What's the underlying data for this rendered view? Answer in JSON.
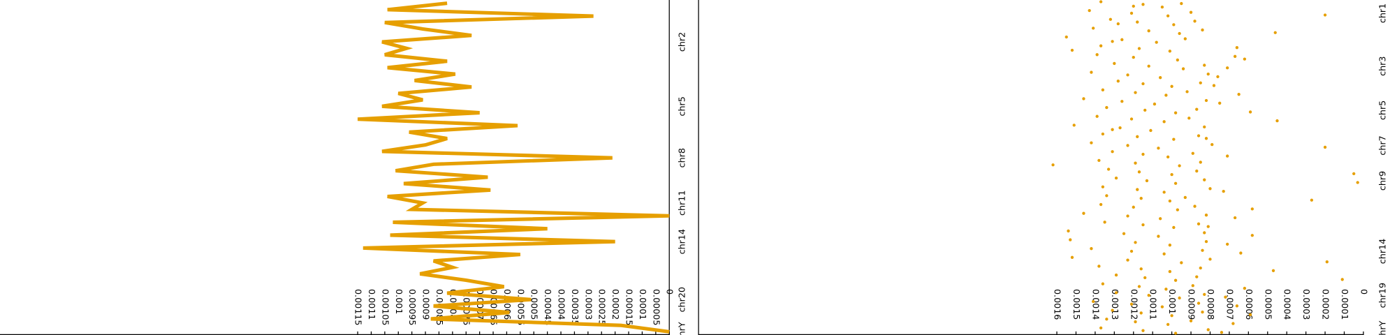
{
  "chart_data": [
    {
      "type": "line",
      "color": "#e69f00",
      "xlim": [
        0.00247,
        0
      ],
      "xticks": [
        0.00115,
        0.0011,
        0.00105,
        0.001,
        0.00095,
        0.0009,
        0.00085,
        0.0008,
        0.00075,
        0.0007,
        0.00065,
        0.0006,
        0.00055,
        0.0005,
        0.00045,
        0.0004,
        0.00035,
        0.0003,
        0.00025,
        0.0002,
        0.00015,
        0.0001,
        5e-05,
        0
      ],
      "categories": [
        null,
        null,
        null,
        null,
        null,
        null,
        "chr2",
        null,
        null,
        null,
        null,
        null,
        null,
        null,
        null,
        null,
        "chr5",
        null,
        null,
        null,
        null,
        null,
        null,
        null,
        "chr8",
        null,
        null,
        null,
        null,
        null,
        null,
        "chr11",
        null,
        null,
        null,
        null,
        null,
        "chr14",
        null,
        null,
        null,
        null,
        null,
        null,
        null,
        null,
        "chr20",
        null,
        null,
        null,
        null,
        "chrY"
      ],
      "values": [
        0.00082,
        0.00104,
        0.00028,
        0.00105,
        0.00091,
        0.00073,
        0.00106,
        0.00097,
        0.00105,
        0.00082,
        0.00104,
        0.00079,
        0.00094,
        0.00073,
        0.001,
        0.00091,
        0.00106,
        0.0007,
        0.00115,
        0.00056,
        0.00096,
        0.00082,
        0.0009,
        0.00106,
        0.00021,
        0.00087,
        0.00101,
        0.00067,
        0.00098,
        0.00066,
        0.00104,
        0.00091,
        0.00095,
        0,
        0.00102,
        0.00045,
        0.00103,
        0.0002,
        0.00113,
        0.00055,
        0.00087,
        0.0008,
        0.00092,
        0.00075,
        0.00061,
        0.00082,
        0.00051,
        0.00087,
        0.00059,
        0.00088,
        0.00018,
        0
      ]
    },
    {
      "type": "scatter",
      "color": "#e69f00",
      "xlim": [
        0.00347,
        0
      ],
      "xticks": [
        0.0016,
        0.0015,
        0.0014,
        0.0013,
        0.0012,
        0.0011,
        0.001,
        0.0009,
        0.0008,
        0.0007,
        0.0006,
        0.0005,
        0.0004,
        0.0003,
        0.0002,
        0.0001,
        0
      ],
      "categories": [
        null,
        "chr1",
        null,
        null,
        null,
        null,
        null,
        "chr3",
        null,
        null,
        null,
        null,
        "chr5",
        null,
        null,
        null,
        "chr7",
        null,
        null,
        null,
        "chr9",
        null,
        null,
        null,
        null,
        null,
        null,
        null,
        "chr14",
        null,
        null,
        null,
        null,
        "chr19",
        null,
        null,
        null,
        "chrY"
      ],
      "values": [
        [
          0.00137,
          0.00115,
          0.00105,
          0.00095,
          0.0012
        ],
        [
          0.00143,
          0.00121,
          0.00102,
          0.0009,
          0.0002
        ],
        [
          0.00132,
          0.00118,
          0.00099,
          0.00088,
          0.00128
        ],
        [
          0.00141,
          0.00112,
          0.00096,
          0.00084,
          0.00046
        ],
        [
          0.00155,
          0.00126,
          0.00108,
          0.00093,
          0.00131
        ],
        [
          0.00137,
          0.00117,
          0.00101,
          0.00066,
          0.00152
        ],
        [
          0.00139,
          0.0012,
          0.00097,
          0.00067,
          0.00062
        ],
        [
          0.0013,
          0.00112,
          0.00094,
          0.00083,
          0.00071
        ],
        [
          0.00142,
          0.00123,
          0.00106,
          0.00081,
          0.00076
        ],
        [
          0.00128,
          0.00115,
          0.001,
          0.00085,
          0.00078
        ],
        [
          0.00136,
          0.00119,
          0.00103,
          0.00092,
          0.00065
        ],
        [
          0.00146,
          0.00126,
          0.00109,
          0.00082,
          0.00075
        ],
        [
          0.00134,
          0.00114,
          0.00098,
          0.00087,
          0.00059
        ],
        [
          0.00139,
          0.00121,
          0.00104,
          0.00091,
          0.00045
        ],
        [
          0.00151,
          0.00127,
          0.00111,
          0.00083,
          0.00131
        ],
        [
          0.00136,
          0.00118,
          0.00099,
          0.00086,
          0.00082
        ],
        [
          0.00142,
          0.00123,
          0.00107,
          0.00079,
          0.0002
        ],
        [
          0.00131,
          0.00115,
          0.00102,
          0.00089,
          0.00071
        ],
        [
          0.00138,
          0.00119,
          0.00096,
          0.00085,
          0.00162
        ],
        [
          0.00133,
          0.00117,
          0.001,
          0.00087,
          5e-05
        ],
        [
          0.00129,
          0.00113,
          0.00098,
          0.00083,
          3e-05
        ],
        [
          0.00136,
          0.00118,
          0.00104,
          0.0008,
          0.00073
        ],
        [
          0.00134,
          0.00116,
          0.00101,
          0.00093,
          0.00027
        ],
        [
          0.00137,
          0.0012,
          0.00097,
          0.00088,
          0.00058
        ],
        [
          0.00146,
          0.00123,
          0.00106,
          0.00082,
          0.00067
        ],
        [
          0.00135,
          0.00115,
          0.00099,
          0.00086,
          0.00081
        ],
        [
          0.00154,
          0.00125,
          0.00107,
          0.00083,
          0.00058
        ],
        [
          0.00153,
          0.00119,
          0.00101,
          0.00082,
          0.00071
        ],
        [
          0.00142,
          0.00121,
          0.00104,
          0.00084,
          0.00064
        ],
        [
          0.00152,
          0.00123,
          0.00095,
          0.0008,
          0.00019
        ],
        [
          0.00138,
          0.00116,
          0.00101,
          0.00085,
          0.00047
        ],
        [
          0.00129,
          0.00114,
          0.00098,
          0.00087,
          0.00011
        ],
        [
          0.00136,
          0.00117,
          0.00103,
          0.00089,
          0.00062
        ],
        [
          0.00129,
          0.00112,
          0.00096,
          0.00083,
          0.00072
        ],
        [
          0.00141,
          0.00121,
          0.00105,
          0.00086,
          0.00066
        ],
        [
          0.00131,
          0.00116,
          0.001,
          0.00084,
          0.00059
        ],
        [
          0.00134,
          0.00119,
          0.00102,
          0.0009,
          0.00068
        ],
        [
          0.00137,
          0.00115,
          0.00098,
          0.00081,
          0.00074
        ]
      ]
    }
  ]
}
